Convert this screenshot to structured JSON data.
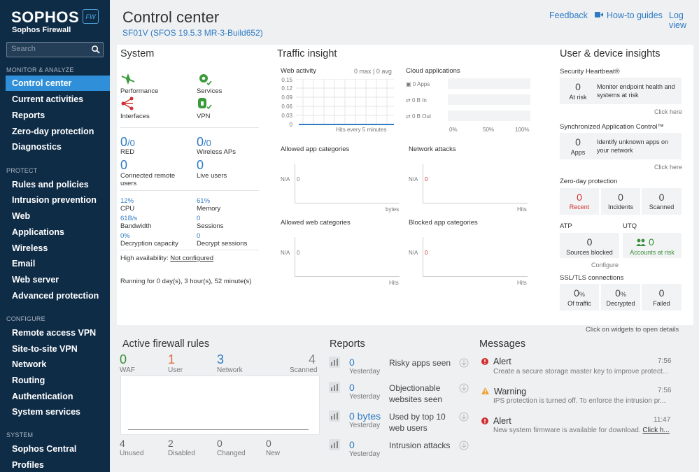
{
  "sidebar": {
    "logo": "SOPHOS",
    "logo_sub": "Sophos Firewall",
    "badge": "FW",
    "search_placeholder": "Search",
    "sections": [
      "MONITOR & ANALYZE",
      "PROTECT",
      "CONFIGURE",
      "SYSTEM"
    ],
    "items": [
      "Control center",
      "Current activities",
      "Reports",
      "Zero-day protection",
      "Diagnostics",
      "Rules and policies",
      "Intrusion prevention",
      "Web",
      "Applications",
      "Wireless",
      "Email",
      "Web server",
      "Advanced protection",
      "Remote access VPN",
      "Site-to-site VPN",
      "Network",
      "Routing",
      "Authentication",
      "System services",
      "Sophos Central",
      "Profiles"
    ]
  },
  "header": {
    "title": "Control center",
    "subtitle": "SF01V (SFOS 19.5.3 MR-3-Build652)",
    "links": [
      "Feedback",
      "How-to guides",
      "Log view"
    ]
  },
  "system": {
    "title": "System",
    "tiles": [
      "Performance",
      "Services",
      "Interfaces",
      "VPN"
    ],
    "red": "0",
    "red_total": "0",
    "red_label": "RED",
    "wap": "0",
    "wap_total": "0",
    "wap_label": "Wireless APs",
    "remote": "0",
    "remote_label": "Connected remote users",
    "live": "0",
    "live_label": "Live users",
    "cpu": "12%",
    "cpu_label": "CPU",
    "memory": "61%",
    "memory_label": "Memory",
    "bandwidth": "61B/s",
    "bandwidth_label": "Bandwidth",
    "sessions": "0",
    "sessions_label": "Sessions",
    "decap": "0%",
    "decap_label": "Decryption capacity",
    "decsess": "0",
    "decsess_label": "Decrypt sessions",
    "ha_label": "High availability:",
    "ha_value": "Not configured",
    "running": "Running for 0 day(s), 3 hour(s), 52 minute(s)"
  },
  "traffic": {
    "title": "Traffic insight",
    "web_activity": "Web activity",
    "web_stats": "0 max | 0 avg",
    "y_ticks": [
      "0.15",
      "0.12",
      "0.09",
      "0.06",
      "0.03",
      "0"
    ],
    "hits_label": "Hits every 5 minutes",
    "cloud_apps": "Cloud applications",
    "cloud_rows": [
      "0 Apps",
      "0 B In",
      "0 B Out"
    ],
    "cloud_ticks": [
      "0%",
      "50%",
      "100%"
    ],
    "widgets": [
      {
        "title": "Allowed app categories",
        "na": "N/A",
        "zero": "0",
        "unit": "bytes"
      },
      {
        "title": "Network attacks",
        "na": "N/A",
        "zero": "0",
        "unit": "Hits"
      },
      {
        "title": "Allowed web categories",
        "na": "N/A",
        "zero": "0",
        "unit": "Hits"
      },
      {
        "title": "Blocked app categories",
        "na": "N/A",
        "zero": "0",
        "unit": "Hits"
      }
    ]
  },
  "insights": {
    "title": "User & device insights",
    "heartbeat_title": "Security Heartbeat®",
    "heartbeat_num": "0",
    "heartbeat_label": "At risk",
    "heartbeat_desc": "Monitor endpoint health and systems at risk",
    "click_here": "Click here",
    "sac_title": "Synchronized Application Control™",
    "sac_num": "0",
    "sac_label": "Apps",
    "sac_desc": "Identify unknown apps on your network",
    "zd_title": "Zero-day protection",
    "zd": [
      {
        "num": "0",
        "label": "Recent"
      },
      {
        "num": "0",
        "label": "Incidents"
      },
      {
        "num": "0",
        "label": "Scanned"
      }
    ],
    "atp_title": "ATP",
    "utq_title": "UTQ",
    "atp_num": "0",
    "atp_label": "Sources blocked",
    "utq_num": "0",
    "utq_label": "Accounts at risk",
    "configure": "Configure",
    "ssl_title": "SSL/TLS connections",
    "ssl": [
      {
        "num": "0",
        "unit": "%",
        "label": "Of traffic"
      },
      {
        "num": "0",
        "unit": "%",
        "label": "Decrypted"
      },
      {
        "num": "0",
        "unit": "",
        "label": "Failed"
      }
    ],
    "footer": "Click on widgets to open details"
  },
  "firewall": {
    "title": "Active firewall rules",
    "top": [
      {
        "num": "0",
        "label": "WAF",
        "color": "#3a8f3a"
      },
      {
        "num": "1",
        "label": "User",
        "color": "#e06a3b"
      },
      {
        "num": "3",
        "label": "Network",
        "color": "#2f7bc3"
      },
      {
        "num": "4",
        "label": "Scanned",
        "color": "#888888"
      }
    ],
    "bottom": [
      {
        "num": "4",
        "label": "Unused"
      },
      {
        "num": "2",
        "label": "Disabled"
      },
      {
        "num": "0",
        "label": "Changed"
      },
      {
        "num": "0",
        "label": "New"
      }
    ]
  },
  "reports": {
    "title": "Reports",
    "items": [
      {
        "value": "0",
        "period": "Yesterday",
        "label": "Risky apps seen"
      },
      {
        "value": "0",
        "period": "Yesterday",
        "label": "Objectionable websites seen"
      },
      {
        "value": "0 bytes",
        "period": "Yesterday",
        "label": "Used by top 10 web users"
      },
      {
        "value": "0",
        "period": "Yesterday",
        "label": "Intrusion attacks"
      }
    ]
  },
  "messages": {
    "title": "Messages",
    "items": [
      {
        "type": "Alert",
        "time": "7:56",
        "text": "Create a secure storage master key to improve protect..."
      },
      {
        "type": "Warning",
        "time": "7:56",
        "text": "IPS protection is turned off. To enforce the intrusion pr..."
      },
      {
        "type": "Alert",
        "time": "11:47",
        "text": "New system firmware is available for download.",
        "link": "Click h..."
      }
    ]
  }
}
